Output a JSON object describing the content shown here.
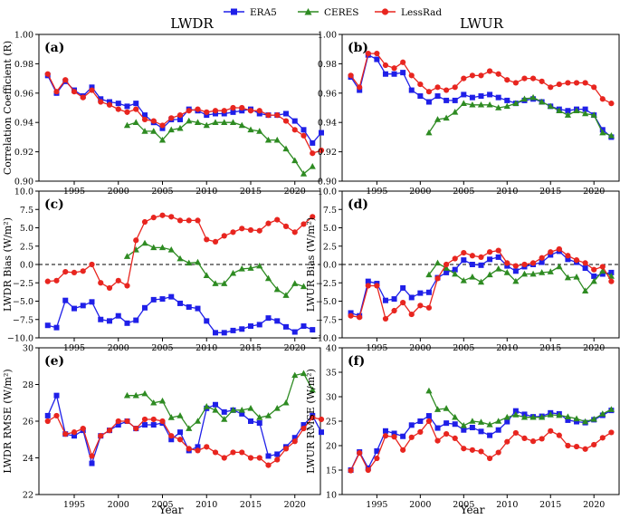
{
  "figure": {
    "legend": [
      {
        "name": "ERA5",
        "color": "#1f1fe8",
        "marker": "square"
      },
      {
        "name": "CERES",
        "color": "#2e8b22",
        "marker": "triangle"
      },
      {
        "name": "LessRad",
        "color": "#e8251f",
        "marker": "circle"
      }
    ],
    "column_titles": [
      "LWDR",
      "LWUR"
    ],
    "xlabel": "Year"
  },
  "chart_data": [
    {
      "type": "line",
      "id": "a",
      "panel_label": "(a)",
      "column": "LWDR",
      "ylabel": "Correlation Coefficient (R)",
      "xlabel": "",
      "xlim": [
        1991,
        2023
      ],
      "ylim": [
        0.9,
        1.0
      ],
      "xticks": [
        1995,
        2000,
        2005,
        2010,
        2015,
        2020
      ],
      "yticks": [
        0.9,
        0.92,
        0.94,
        0.96,
        0.98,
        1.0
      ],
      "ytick_labels": [
        "0.90",
        "0.92",
        "0.94",
        "0.96",
        "0.98",
        "1.00"
      ],
      "zero_line": false,
      "series": [
        {
          "name": "ERA5",
          "x_start": 1992,
          "values": [
            0.972,
            0.96,
            0.968,
            0.962,
            0.958,
            0.964,
            0.956,
            0.954,
            0.953,
            0.951,
            0.953,
            0.945,
            0.94,
            0.936,
            0.942,
            0.942,
            0.949,
            0.948,
            0.945,
            0.946,
            0.946,
            0.947,
            0.948,
            0.949,
            0.946,
            0.945,
            0.945,
            0.946,
            0.941,
            0.935,
            0.926,
            0.933
          ]
        },
        {
          "name": "CERES",
          "x_start": 2001,
          "values": [
            0.938,
            0.94,
            0.934,
            0.934,
            0.928,
            0.935,
            0.936,
            0.941,
            0.94,
            0.938,
            0.94,
            0.94,
            0.94,
            0.938,
            0.935,
            0.934,
            0.928,
            0.928,
            0.922,
            0.914,
            0.905,
            0.91
          ]
        },
        {
          "name": "LessRad",
          "x_start": 1992,
          "values": [
            0.973,
            0.961,
            0.969,
            0.961,
            0.957,
            0.962,
            0.954,
            0.952,
            0.949,
            0.947,
            0.949,
            0.942,
            0.941,
            0.938,
            0.943,
            0.945,
            0.948,
            0.949,
            0.947,
            0.948,
            0.948,
            0.95,
            0.95,
            0.948,
            0.948,
            0.945,
            0.945,
            0.941,
            0.935,
            0.931,
            0.919,
            0.921
          ]
        }
      ]
    },
    {
      "type": "line",
      "id": "b",
      "panel_label": "(b)",
      "column": "LWUR",
      "ylabel": "",
      "xlabel": "",
      "xlim": [
        1991,
        2023
      ],
      "ylim": [
        0.9,
        1.0
      ],
      "xticks": [
        1995,
        2000,
        2005,
        2010,
        2015,
        2020
      ],
      "yticks": [
        0.9,
        0.92,
        0.94,
        0.96,
        0.98,
        1.0
      ],
      "ytick_labels": [
        "0.90",
        "0.92",
        "0.94",
        "0.96",
        "0.98",
        "1.00"
      ],
      "zero_line": false,
      "series": [
        {
          "name": "ERA5",
          "x_start": 1992,
          "values": [
            0.971,
            0.962,
            0.986,
            0.983,
            0.973,
            0.973,
            0.974,
            0.962,
            0.958,
            0.954,
            0.958,
            0.955,
            0.955,
            0.959,
            0.957,
            0.958,
            0.959,
            0.957,
            0.955,
            0.953,
            0.955,
            0.956,
            0.954,
            0.951,
            0.949,
            0.948,
            0.949,
            0.949,
            0.945,
            0.935,
            0.93
          ]
        },
        {
          "name": "CERES",
          "x_start": 2001,
          "values": [
            0.933,
            0.942,
            0.943,
            0.947,
            0.953,
            0.952,
            0.952,
            0.952,
            0.95,
            0.951,
            0.953,
            0.956,
            0.957,
            0.954,
            0.951,
            0.948,
            0.945,
            0.948,
            0.946,
            0.945,
            0.933,
            0.931
          ]
        },
        {
          "name": "LessRad",
          "x_start": 1992,
          "values": [
            0.972,
            0.964,
            0.987,
            0.987,
            0.979,
            0.977,
            0.981,
            0.972,
            0.966,
            0.961,
            0.964,
            0.962,
            0.964,
            0.97,
            0.972,
            0.972,
            0.975,
            0.973,
            0.969,
            0.967,
            0.97,
            0.97,
            0.968,
            0.964,
            0.966,
            0.967,
            0.967,
            0.967,
            0.964,
            0.956,
            0.953
          ]
        }
      ]
    },
    {
      "type": "line",
      "id": "c",
      "panel_label": "(c)",
      "column": "LWDR",
      "ylabel": "LWDR Bias (W/m²)",
      "xlabel": "",
      "xlim": [
        1991,
        2023
      ],
      "ylim": [
        -10,
        10
      ],
      "xticks": [
        1995,
        2000,
        2005,
        2010,
        2015,
        2020
      ],
      "yticks": [
        -10,
        -7.5,
        -5,
        -2.5,
        0,
        2.5,
        5,
        7.5,
        10
      ],
      "ytick_labels": [
        "−10.0",
        "−7.5",
        "−5.0",
        "−2.5",
        "0.0",
        "2.5",
        "5.0",
        "7.5",
        "10.0"
      ],
      "zero_line": true,
      "series": [
        {
          "name": "ERA5",
          "x_start": 1992,
          "values": [
            -8.3,
            -8.6,
            -4.9,
            -6.0,
            -5.6,
            -5.1,
            -7.5,
            -7.7,
            -7.0,
            -8.0,
            -7.6,
            -5.9,
            -4.8,
            -4.7,
            -4.4,
            -5.3,
            -5.8,
            -6.0,
            -7.7,
            -9.3,
            -9.3,
            -9.0,
            -8.8,
            -8.4,
            -8.2,
            -7.3,
            -7.7,
            -8.5,
            -9.2,
            -8.4,
            -8.9
          ]
        },
        {
          "name": "CERES",
          "x_start": 2001,
          "values": [
            1.1,
            2.0,
            2.9,
            2.3,
            2.3,
            2.0,
            0.8,
            0.2,
            0.3,
            -1.5,
            -2.6,
            -2.6,
            -1.2,
            -0.6,
            -0.5,
            -0.2,
            -1.9,
            -3.4,
            -4.2,
            -2.6,
            -3.0
          ]
        },
        {
          "name": "LessRad",
          "x_start": 1992,
          "values": [
            -2.3,
            -2.2,
            -1.0,
            -1.1,
            -0.9,
            0.0,
            -2.5,
            -3.2,
            -2.2,
            -2.9,
            3.3,
            5.8,
            6.4,
            6.7,
            6.5,
            6.0,
            6.0,
            6.0,
            3.4,
            3.1,
            3.9,
            4.4,
            4.9,
            4.7,
            4.6,
            5.6,
            6.1,
            5.2,
            4.4,
            5.5,
            6.5
          ]
        }
      ]
    },
    {
      "type": "line",
      "id": "d",
      "panel_label": "(d)",
      "column": "LWUR",
      "ylabel": "LWUR Bias (W/m²)",
      "xlabel": "",
      "xlim": [
        1991,
        2023
      ],
      "ylim": [
        -10,
        10
      ],
      "xticks": [
        1995,
        2000,
        2005,
        2010,
        2015,
        2020
      ],
      "yticks": [
        -10,
        -7.5,
        -5,
        -2.5,
        0,
        2.5,
        5,
        7.5,
        10
      ],
      "ytick_labels": [
        "−10.0",
        "−7.5",
        "−5.0",
        "−2.5",
        "0.0",
        "2.5",
        "5.0",
        "7.5",
        "10.0"
      ],
      "zero_line": true,
      "series": [
        {
          "name": "ERA5",
          "x_start": 1992,
          "values": [
            -6.6,
            -7.0,
            -2.3,
            -2.6,
            -4.9,
            -4.7,
            -3.2,
            -4.5,
            -3.9,
            -3.8,
            -1.8,
            -1.1,
            -0.7,
            0.6,
            0.0,
            -0.1,
            0.7,
            1.0,
            -0.2,
            -0.9,
            -0.3,
            0.0,
            0.3,
            1.3,
            1.8,
            0.7,
            0.3,
            -0.5,
            -1.6,
            -1.3,
            -1.1
          ]
        },
        {
          "name": "CERES",
          "x_start": 2001,
          "values": [
            -1.4,
            0.2,
            -0.5,
            -1.3,
            -2.2,
            -1.7,
            -2.4,
            -1.4,
            -0.6,
            -1.1,
            -2.3,
            -1.3,
            -1.3,
            -1.1,
            -1.0,
            -0.3,
            -1.8,
            -1.7,
            -3.6,
            -2.3,
            -0.9,
            -1.6
          ]
        },
        {
          "name": "LessRad",
          "x_start": 1992,
          "values": [
            -7.0,
            -7.2,
            -2.9,
            -2.9,
            -7.4,
            -6.3,
            -5.2,
            -6.8,
            -5.6,
            -5.9,
            -1.9,
            0.0,
            0.8,
            1.6,
            1.2,
            1.0,
            1.7,
            1.9,
            0.2,
            -0.2,
            0.0,
            0.2,
            0.9,
            1.7,
            2.1,
            1.2,
            0.6,
            0.2,
            -0.7,
            -0.3,
            -2.3
          ]
        }
      ]
    },
    {
      "type": "line",
      "id": "e",
      "panel_label": "(e)",
      "column": "LWDR",
      "ylabel": "LWDR RMSE (W/m²)",
      "xlabel": "Year",
      "xlim": [
        1991,
        2023
      ],
      "ylim": [
        22,
        30
      ],
      "xticks": [
        1995,
        2000,
        2005,
        2010,
        2015,
        2020
      ],
      "yticks": [
        22,
        24,
        26,
        28,
        30
      ],
      "ytick_labels": [
        "22",
        "24",
        "26",
        "28",
        "30"
      ],
      "zero_line": false,
      "series": [
        {
          "name": "ERA5",
          "x_start": 1992,
          "values": [
            26.3,
            27.4,
            25.3,
            25.2,
            25.5,
            23.7,
            25.2,
            25.5,
            25.8,
            26.0,
            25.6,
            25.8,
            25.8,
            25.9,
            25.0,
            25.4,
            24.4,
            24.6,
            26.7,
            26.9,
            26.5,
            26.6,
            26.4,
            26.0,
            25.9,
            24.1,
            24.2,
            24.6,
            25.1,
            25.8,
            26.3,
            25.4
          ]
        },
        {
          "name": "CERES",
          "x_start": 2001,
          "values": [
            27.4,
            27.4,
            27.5,
            27.0,
            27.1,
            26.2,
            26.3,
            25.6,
            26.0,
            26.8,
            26.6,
            26.1,
            26.6,
            26.6,
            26.7,
            26.2,
            26.3,
            26.7,
            27.0,
            28.5,
            28.6,
            27.7
          ]
        },
        {
          "name": "LessRad",
          "x_start": 1992,
          "values": [
            26.0,
            26.3,
            25.3,
            25.4,
            25.6,
            24.1,
            25.2,
            25.5,
            26.0,
            26.0,
            25.6,
            26.1,
            26.1,
            26.0,
            25.2,
            25.0,
            24.5,
            24.4,
            24.6,
            24.3,
            24.0,
            24.3,
            24.3,
            24.0,
            24.0,
            23.6,
            23.9,
            24.5,
            24.9,
            25.6,
            26.2,
            26.1
          ]
        }
      ]
    },
    {
      "type": "line",
      "id": "f",
      "panel_label": "(f)",
      "column": "LWUR",
      "ylabel": "LWUR RMSE (W/m²)",
      "xlabel": "Year",
      "xlim": [
        1991,
        2023
      ],
      "ylim": [
        10,
        40
      ],
      "xticks": [
        1995,
        2000,
        2005,
        2010,
        2015,
        2020
      ],
      "yticks": [
        10,
        15,
        20,
        25,
        30,
        35,
        40
      ],
      "ytick_labels": [
        "10",
        "15",
        "20",
        "25",
        "30",
        "35",
        "40"
      ],
      "zero_line": false,
      "series": [
        {
          "name": "ERA5",
          "x_start": 1992,
          "values": [
            15.0,
            18.7,
            15.4,
            18.9,
            23.0,
            22.5,
            21.9,
            24.2,
            25.0,
            26.1,
            23.6,
            24.6,
            24.4,
            23.2,
            23.7,
            22.9,
            22.1,
            23.2,
            24.9,
            27.1,
            26.4,
            25.9,
            26.0,
            26.7,
            26.5,
            25.2,
            24.9,
            24.7,
            25.3,
            26.2,
            27.2
          ]
        },
        {
          "name": "CERES",
          "x_start": 2001,
          "values": [
            31.2,
            27.4,
            27.6,
            25.8,
            24.1,
            25.0,
            24.8,
            24.3,
            25.0,
            25.8,
            26.3,
            25.8,
            25.8,
            25.8,
            26.3,
            26.2,
            25.9,
            25.5,
            24.9,
            25.4,
            26.5,
            27.4
          ]
        },
        {
          "name": "LessRad",
          "x_start": 1992,
          "values": [
            14.9,
            18.5,
            15.0,
            17.4,
            22.0,
            21.8,
            19.1,
            21.7,
            22.8,
            25.0,
            21.0,
            22.4,
            21.5,
            19.4,
            19.1,
            18.8,
            17.4,
            18.6,
            20.8,
            22.6,
            21.5,
            20.9,
            21.4,
            23.0,
            22.1,
            20.0,
            19.8,
            19.3,
            20.2,
            21.6,
            22.7
          ]
        }
      ]
    }
  ]
}
